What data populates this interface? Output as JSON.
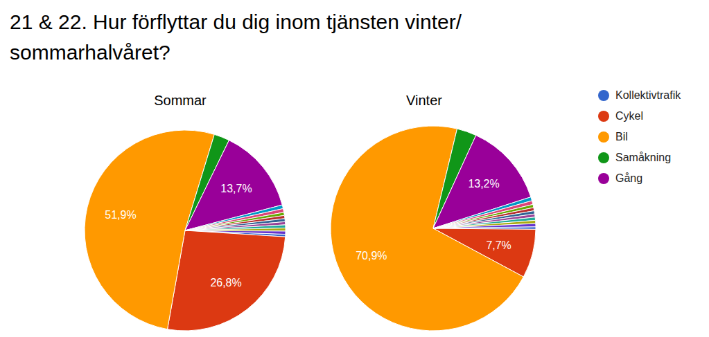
{
  "chart_data": {
    "type": "pie",
    "title": "21 & 22. Hur förflyttar du dig inom tjänsten vinter/ sommarhalvåret?",
    "categories": [
      "Kollektivtrafik",
      "Cykel",
      "Bil",
      "Samåkning",
      "Gång",
      null,
      null,
      null,
      null,
      null,
      null,
      null,
      null,
      null
    ],
    "colors": [
      "#3366cc",
      "#dc3912",
      "#ff9900",
      "#109618",
      "#990099",
      "#0099c6",
      "#dd4477",
      "#66aa00",
      "#b82e2e",
      "#316395",
      "#994499",
      "#22aa99",
      "#aaaa11",
      "#6633cc"
    ],
    "series": [
      {
        "name": "Sommar",
        "values": [
          0.4,
          26.8,
          51.9,
          2.5,
          13.7,
          0.6,
          0.6,
          0.5,
          0.5,
          0.5,
          0.5,
          0.5,
          0.5,
          0.5
        ],
        "value_labels": [
          null,
          "26,8%",
          "51,9%",
          null,
          "13,7%",
          null,
          null,
          null,
          null,
          null,
          null,
          null,
          null,
          null
        ]
      },
      {
        "name": "Vinter",
        "values": [
          0.4,
          7.7,
          70.9,
          3.1,
          13.2,
          0.6,
          0.6,
          0.5,
          0.5,
          0.5,
          0.5,
          0.5,
          0.5,
          0.5
        ],
        "value_labels": [
          null,
          "7,7%",
          "70,9%",
          null,
          "13,2%",
          null,
          null,
          null,
          null,
          null,
          null,
          null,
          null,
          null
        ]
      }
    ],
    "legend": "right",
    "data_labels": true
  }
}
